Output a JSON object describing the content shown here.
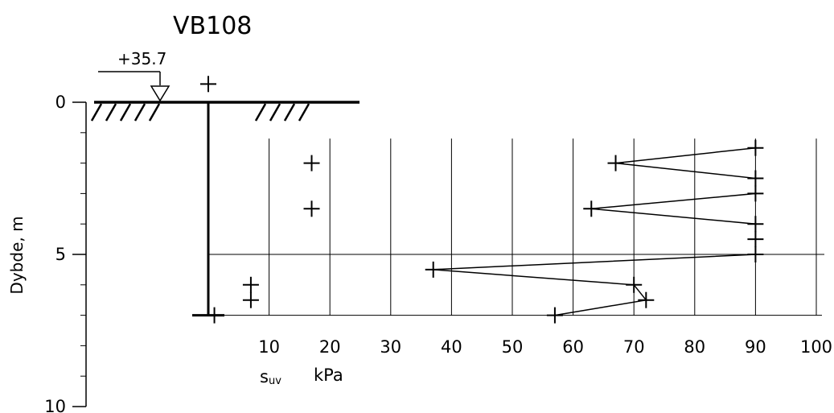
{
  "chart_data": {
    "type": "line",
    "title": "VB108",
    "elevation_label": "+35.7",
    "ylabel": "Dybde, m",
    "xlabel_symbol": "s",
    "xlabel_subscript": "uv",
    "xlabel_unit": "kPa",
    "depth_ticks": [
      0,
      5,
      10
    ],
    "depth_tick_labels": [
      "0",
      "5",
      "10"
    ],
    "x_ticks": [
      10,
      20,
      30,
      40,
      50,
      60,
      70,
      80,
      90,
      100
    ],
    "x_tick_labels": [
      "10",
      "20",
      "30",
      "40",
      "50",
      "60",
      "70",
      "80",
      "90",
      "100"
    ],
    "xlim": [
      0,
      100
    ],
    "depth_lim": [
      0,
      10
    ],
    "grid_depth_range": [
      1.3,
      7.0
    ],
    "layer_boundary_depth": 5.0,
    "borehole_end_depth": 7.0,
    "series": [
      {
        "values": [
          {
            "su": 90,
            "depth": 1.5
          },
          {
            "su": 67,
            "depth": 2.0
          },
          {
            "su": 90,
            "depth": 2.5
          },
          {
            "su": 90,
            "depth": 3.0
          },
          {
            "su": 63,
            "depth": 3.5
          },
          {
            "su": 90,
            "depth": 4.0
          },
          {
            "su": 90,
            "depth": 4.5
          },
          {
            "su": 90,
            "depth": 5.0
          },
          {
            "su": 37,
            "depth": 5.5
          },
          {
            "su": 70,
            "depth": 6.0
          },
          {
            "su": 72,
            "depth": 6.5
          },
          {
            "su": 57,
            "depth": 7.0
          }
        ]
      }
    ],
    "remoulded_points": [
      {
        "su": 17,
        "depth": 2.0
      },
      {
        "su": 17,
        "depth": 3.5
      },
      {
        "su": 7,
        "depth": 6.0
      },
      {
        "su": 7,
        "depth": 6.5
      },
      {
        "su": 1,
        "depth": 7.0
      }
    ],
    "surface_marker": {
      "su": 0,
      "depth": -0.6
    }
  }
}
